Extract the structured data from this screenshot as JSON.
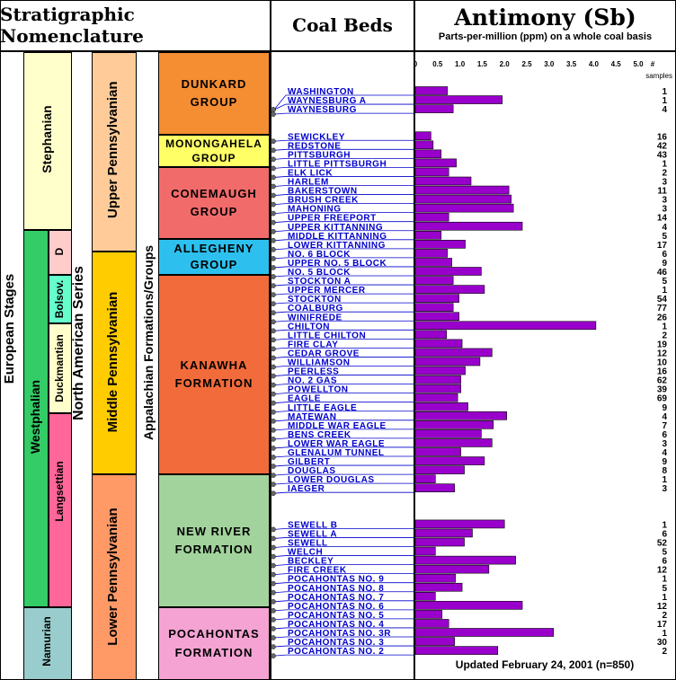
{
  "headers": {
    "strat": "Stratigraphic Nomenclature",
    "coal": "Coal Beds",
    "element": "Antimony (Sb)",
    "element_sub": "Parts-per-million (ppm) on a whole coal basis"
  },
  "columns": {
    "european_stages": "European Stages",
    "north_american_series": "North American Series",
    "appalachian": "Appalachian Formations/Groups"
  },
  "european": {
    "stephanian": "Stephanian",
    "westphalian": "Westphalian",
    "namurian": "Namurian",
    "d": "D",
    "bolsov": "Bolsov.",
    "duckmantian": "Duckmantian",
    "langsettian": "Langsettian"
  },
  "series": {
    "upper": "Upper Pennsylvanian",
    "middle": "Middle Pennsylvanian",
    "lower": "Lower Pennsylvanian"
  },
  "groups": [
    {
      "key": "dunkard",
      "label": "DUNKARD\nGROUP",
      "color": "#F58D33"
    },
    {
      "key": "monongahela",
      "label": "MONONGAHELA\nGROUP",
      "color": "#FFFF66"
    },
    {
      "key": "conemaugh",
      "label": "CONEMAUGH\nGROUP",
      "color": "#F26B6B"
    },
    {
      "key": "allegheny",
      "label": "ALLEGHENY\nGROUP",
      "color": "#2DC0EE"
    },
    {
      "key": "kanawha",
      "label": "KANAWHA\nFORMATION",
      "color": "#F26B3B"
    },
    {
      "key": "newriver",
      "label": "NEW RIVER\nFORMATION",
      "color": "#A2D39C"
    },
    {
      "key": "pocahontas",
      "label": "POCAHONTAS\nFORMATION",
      "color": "#F4A3D3"
    }
  ],
  "footer": "Updated February 24, 2001 (n=850)",
  "colors": {
    "bar": "#9900CC",
    "bed_label": "#0000CC",
    "stephanian": "#FFFFCC",
    "westphalian": "#33CC66",
    "namurian": "#99CCCC",
    "d": "#FFCCCC",
    "bolsov": "#66FFCC",
    "duckmantian": "#FFFFCC",
    "langsettian": "#FF6699",
    "upper_pa": "#FFCC99",
    "middle_pa": "#FFCC00",
    "lower_pa": "#FF9966"
  },
  "chart_data": {
    "type": "bar",
    "orientation": "horizontal",
    "title": "Antimony (Sb)",
    "subtitle": "Parts-per-million (ppm) on a whole coal basis",
    "xlim": [
      0,
      5.0
    ],
    "ticks": [
      "0",
      "0.5",
      "1.0",
      "1.5",
      "2.0",
      "2.5",
      "3.0",
      "3.5",
      "4.0",
      "4.5",
      "5.0",
      "#"
    ],
    "samples_label": "samples",
    "categories": [
      "WASHINGTON",
      "WAYNESBURG A",
      "WAYNESBURG",
      "SEWICKLEY",
      "REDSTONE",
      "PITTSBURGH",
      "LITTLE PITTSBURGH",
      "ELK LICK",
      "HARLEM",
      "BAKERSTOWN",
      "BRUSH CREEK",
      "MAHONING",
      "UPPER FREEPORT",
      "UPPER KITTANNING",
      "MIDDLE KITTANNING",
      "LOWER KITTANNING",
      "NO. 6 BLOCK",
      "UPPER NO. 5 BLOCK",
      "NO. 5 BLOCK",
      "STOCKTON A",
      "UPPER MERCER",
      "STOCKTON",
      "COALBURG",
      "WINIFREDE",
      "CHILTON",
      "LITTLE CHILTON",
      "FIRE CLAY",
      "CEDAR GROVE",
      "WILLIAMSON",
      "PEERLESS",
      "NO. 2 GAS",
      "POWELLTON",
      "EAGLE",
      "LITTLE EAGLE",
      "MATEWAN",
      "MIDDLE WAR EAGLE",
      "BENS CREEK",
      "LOWER WAR EAGLE",
      "GLENALUM TUNNEL",
      "GILBERT",
      "DOUGLAS",
      "LOWER DOUGLAS",
      "IAEGER",
      "SEWELL B",
      "SEWELL A",
      "SEWELL",
      "WELCH",
      "BECKLEY",
      "FIRE CREEK",
      "POCAHONTAS NO. 9",
      "POCAHONTAS NO. 8",
      "POCAHONTAS NO. 7",
      "POCAHONTAS NO. 6",
      "POCAHONTAS NO. 5",
      "POCAHONTAS NO. 4",
      "POCAHONTAS NO. 3R",
      "POCAHONTAS NO. 3",
      "POCAHONTAS NO. 2"
    ],
    "values": [
      0.72,
      1.95,
      0.85,
      0.35,
      0.4,
      0.58,
      0.92,
      0.75,
      1.25,
      2.1,
      2.15,
      2.2,
      0.75,
      2.4,
      0.58,
      1.12,
      0.72,
      0.82,
      1.48,
      0.85,
      1.55,
      0.98,
      0.85,
      0.98,
      4.05,
      0.7,
      1.05,
      1.72,
      1.45,
      1.12,
      1.02,
      1.02,
      0.95,
      1.18,
      2.05,
      1.75,
      1.48,
      1.72,
      1.02,
      1.55,
      1.1,
      0.45,
      0.88,
      2.0,
      1.28,
      1.1,
      0.45,
      2.25,
      1.65,
      0.9,
      1.05,
      0.45,
      2.4,
      0.6,
      0.75,
      3.1,
      0.88,
      1.85
    ],
    "samples": [
      "1",
      "1",
      "4",
      "16",
      "42",
      "43",
      "1",
      "2",
      "3",
      "11",
      "3",
      "3",
      "14",
      "4",
      "5",
      "17",
      "6",
      "9",
      "46",
      "5",
      "1",
      "54",
      "77",
      "26",
      "1",
      "2",
      "19",
      "12",
      "10",
      "16",
      "62",
      "39",
      "69",
      "9",
      "4",
      "7",
      "6",
      "3",
      "4",
      "9",
      "8",
      "1",
      "3",
      "1",
      "6",
      "52",
      "5",
      "6",
      "12",
      "1",
      "5",
      "1",
      "12",
      "2",
      "17",
      "1",
      "30",
      "2"
    ]
  }
}
